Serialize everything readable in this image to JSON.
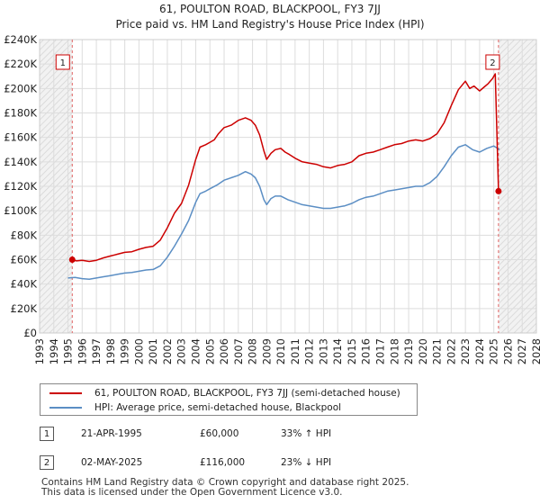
{
  "chart_data": {
    "type": "line",
    "title": "61, POULTON ROAD, BLACKPOOL, FY3 7JJ",
    "subtitle": "Price paid vs. HM Land Registry's House Price Index (HPI)",
    "xlim": [
      1993,
      2028
    ],
    "ylim": [
      0,
      240000
    ],
    "x_ticks": [
      "1993",
      "1994",
      "1995",
      "1996",
      "1997",
      "1998",
      "1999",
      "2000",
      "2001",
      "2002",
      "2003",
      "2004",
      "2005",
      "2006",
      "2007",
      "2008",
      "2009",
      "2010",
      "2011",
      "2012",
      "2013",
      "2014",
      "2015",
      "2016",
      "2017",
      "2018",
      "2019",
      "2020",
      "2021",
      "2022",
      "2023",
      "2024",
      "2025",
      "2026",
      "2027",
      "2028"
    ],
    "y_ticks": [
      {
        "value": 0,
        "label": "£0"
      },
      {
        "value": 20000,
        "label": "£20K"
      },
      {
        "value": 40000,
        "label": "£40K"
      },
      {
        "value": 60000,
        "label": "£60K"
      },
      {
        "value": 80000,
        "label": "£80K"
      },
      {
        "value": 100000,
        "label": "£100K"
      },
      {
        "value": 120000,
        "label": "£120K"
      },
      {
        "value": 140000,
        "label": "£140K"
      },
      {
        "value": 160000,
        "label": "£160K"
      },
      {
        "value": 180000,
        "label": "£180K"
      },
      {
        "value": 200000,
        "label": "£200K"
      },
      {
        "value": 220000,
        "label": "£220K"
      },
      {
        "value": 240000,
        "label": "£240K"
      }
    ],
    "grid": true,
    "series": [
      {
        "name": "61, POULTON ROAD, BLACKPOOL, FY3 7JJ (semi-detached house)",
        "color": "#cc0000",
        "points": [
          [
            1995.3,
            60000
          ],
          [
            1995.6,
            59000
          ],
          [
            1996,
            59500
          ],
          [
            1996.5,
            58500
          ],
          [
            1997,
            59500
          ],
          [
            1997.5,
            61500
          ],
          [
            1998,
            63000
          ],
          [
            1998.5,
            64500
          ],
          [
            1999,
            66000
          ],
          [
            1999.5,
            66500
          ],
          [
            2000,
            68500
          ],
          [
            2000.5,
            70000
          ],
          [
            2001,
            71000
          ],
          [
            2001.5,
            76000
          ],
          [
            2002,
            86000
          ],
          [
            2002.5,
            98000
          ],
          [
            2003,
            106000
          ],
          [
            2003.5,
            121000
          ],
          [
            2004,
            142000
          ],
          [
            2004.3,
            152000
          ],
          [
            2004.7,
            154000
          ],
          [
            2005,
            156000
          ],
          [
            2005.3,
            158000
          ],
          [
            2005.6,
            163000
          ],
          [
            2006,
            168000
          ],
          [
            2006.5,
            170000
          ],
          [
            2007,
            174000
          ],
          [
            2007.5,
            176000
          ],
          [
            2007.9,
            174000
          ],
          [
            2008.2,
            170000
          ],
          [
            2008.5,
            162000
          ],
          [
            2008.8,
            149000
          ],
          [
            2009,
            142000
          ],
          [
            2009.3,
            147000
          ],
          [
            2009.6,
            150000
          ],
          [
            2010,
            151000
          ],
          [
            2010.3,
            148000
          ],
          [
            2010.6,
            146000
          ],
          [
            2011,
            143000
          ],
          [
            2011.5,
            140000
          ],
          [
            2012,
            139000
          ],
          [
            2012.5,
            138000
          ],
          [
            2013,
            136000
          ],
          [
            2013.5,
            135000
          ],
          [
            2014,
            137000
          ],
          [
            2014.5,
            138000
          ],
          [
            2015,
            140000
          ],
          [
            2015.5,
            145000
          ],
          [
            2016,
            147000
          ],
          [
            2016.5,
            148000
          ],
          [
            2017,
            150000
          ],
          [
            2017.5,
            152000
          ],
          [
            2018,
            154000
          ],
          [
            2018.5,
            155000
          ],
          [
            2019,
            157000
          ],
          [
            2019.5,
            158000
          ],
          [
            2020,
            157000
          ],
          [
            2020.5,
            159000
          ],
          [
            2021,
            163000
          ],
          [
            2021.5,
            172000
          ],
          [
            2022,
            186000
          ],
          [
            2022.5,
            199000
          ],
          [
            2023,
            206000
          ],
          [
            2023.3,
            200000
          ],
          [
            2023.6,
            202000
          ],
          [
            2024,
            198000
          ],
          [
            2024.3,
            201000
          ],
          [
            2024.6,
            204000
          ],
          [
            2024.9,
            208000
          ],
          [
            2025.1,
            212000
          ],
          [
            2025.33,
            116000
          ]
        ]
      },
      {
        "name": "HPI: Average price, semi-detached house, Blackpool",
        "color": "#5b8ec4",
        "points": [
          [
            1995,
            45000
          ],
          [
            1995.5,
            45500
          ],
          [
            1996,
            44500
          ],
          [
            1996.5,
            44000
          ],
          [
            1997,
            45000
          ],
          [
            1997.5,
            46000
          ],
          [
            1998,
            47000
          ],
          [
            1998.5,
            48000
          ],
          [
            1999,
            49000
          ],
          [
            1999.5,
            49500
          ],
          [
            2000,
            50500
          ],
          [
            2000.5,
            51500
          ],
          [
            2001,
            52000
          ],
          [
            2001.5,
            55000
          ],
          [
            2002,
            62000
          ],
          [
            2002.5,
            71000
          ],
          [
            2003,
            81000
          ],
          [
            2003.5,
            92000
          ],
          [
            2004,
            107000
          ],
          [
            2004.3,
            114000
          ],
          [
            2004.7,
            116000
          ],
          [
            2005,
            118000
          ],
          [
            2005.5,
            121000
          ],
          [
            2006,
            125000
          ],
          [
            2006.5,
            127000
          ],
          [
            2007,
            129000
          ],
          [
            2007.5,
            132000
          ],
          [
            2007.9,
            130000
          ],
          [
            2008.2,
            127000
          ],
          [
            2008.5,
            120000
          ],
          [
            2008.8,
            109000
          ],
          [
            2009,
            105000
          ],
          [
            2009.3,
            110000
          ],
          [
            2009.6,
            112000
          ],
          [
            2010,
            112000
          ],
          [
            2010.5,
            109000
          ],
          [
            2011,
            107000
          ],
          [
            2011.5,
            105000
          ],
          [
            2012,
            104000
          ],
          [
            2012.5,
            103000
          ],
          [
            2013,
            102000
          ],
          [
            2013.5,
            102000
          ],
          [
            2014,
            103000
          ],
          [
            2014.5,
            104000
          ],
          [
            2015,
            106000
          ],
          [
            2015.5,
            109000
          ],
          [
            2016,
            111000
          ],
          [
            2016.5,
            112000
          ],
          [
            2017,
            114000
          ],
          [
            2017.5,
            116000
          ],
          [
            2018,
            117000
          ],
          [
            2018.5,
            118000
          ],
          [
            2019,
            119000
          ],
          [
            2019.5,
            120000
          ],
          [
            2020,
            120000
          ],
          [
            2020.5,
            123000
          ],
          [
            2021,
            128000
          ],
          [
            2021.5,
            136000
          ],
          [
            2022,
            145000
          ],
          [
            2022.5,
            152000
          ],
          [
            2023,
            154000
          ],
          [
            2023.5,
            150000
          ],
          [
            2024,
            148000
          ],
          [
            2024.5,
            151000
          ],
          [
            2025,
            153000
          ],
          [
            2025.4,
            150000
          ]
        ]
      }
    ],
    "sales": [
      {
        "marker": "1",
        "x": 1995.3,
        "price": 60000,
        "date": "21-APR-1995",
        "price_label": "£60,000",
        "hpi_note": "33% ↑ HPI"
      },
      {
        "marker": "2",
        "x": 2025.33,
        "price": 116000,
        "date": "02-MAY-2025",
        "price_label": "£116,000",
        "hpi_note": "23% ↓ HPI"
      }
    ],
    "hatched_ranges": [
      [
        1993,
        1995.3
      ],
      [
        2025.33,
        2028
      ]
    ]
  },
  "legend": {
    "item1": "61, POULTON ROAD, BLACKPOOL, FY3 7JJ (semi-detached house)",
    "item2": "HPI: Average price, semi-detached house, Blackpool"
  },
  "footer": {
    "line1": "Contains HM Land Registry data © Crown copyright and database right 2025.",
    "line2": "This data is licensed under the Open Government Licence v3.0."
  },
  "colors": {
    "property": "#cc0000",
    "hpi": "#5b8ec4",
    "grid": "#dddddd"
  }
}
